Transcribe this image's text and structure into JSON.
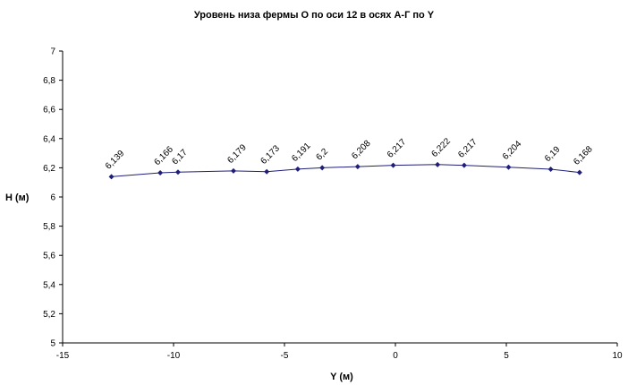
{
  "chart_data": {
    "type": "scatter",
    "title": "Уровень низа фермы О по оси 12 в осях А-Г по Y",
    "xlabel": "Y (м)",
    "ylabel": "H (м)",
    "xlim": [
      -15,
      10
    ],
    "ylim": [
      5,
      7
    ],
    "x_ticks": [
      -15,
      -10,
      -5,
      0,
      5,
      10
    ],
    "x_tick_labels": [
      "-15",
      "-10",
      "-5",
      "0",
      "5",
      "10"
    ],
    "y_ticks": [
      5,
      5.2,
      5.4,
      5.6,
      5.8,
      6,
      6.2,
      6.4,
      6.6,
      6.8,
      7
    ],
    "y_tick_labels": [
      "5",
      "5,2",
      "5,4",
      "5,6",
      "5,8",
      "6",
      "6,2",
      "6,4",
      "6,6",
      "6,8",
      "7"
    ],
    "grid": false,
    "legend": "none",
    "series": [
      {
        "color": "#1f1f7a",
        "marker": "diamond",
        "line": true,
        "x": [
          -12.8,
          -10.6,
          -9.8,
          -7.3,
          -5.8,
          -4.4,
          -3.3,
          -1.7,
          -0.1,
          1.9,
          3.1,
          5.1,
          7.0,
          8.3
        ],
        "y": [
          6.139,
          6.166,
          6.17,
          6.179,
          6.173,
          6.191,
          6.2,
          6.208,
          6.217,
          6.222,
          6.217,
          6.204,
          6.19,
          6.168
        ],
        "labels": [
          "6,139",
          "6,166",
          "6,17",
          "6,179",
          "6,173",
          "6,191",
          "6,2",
          "6,208",
          "6,217",
          "6,222",
          "6,217",
          "6,204",
          "6,19",
          "6,168"
        ]
      }
    ]
  }
}
